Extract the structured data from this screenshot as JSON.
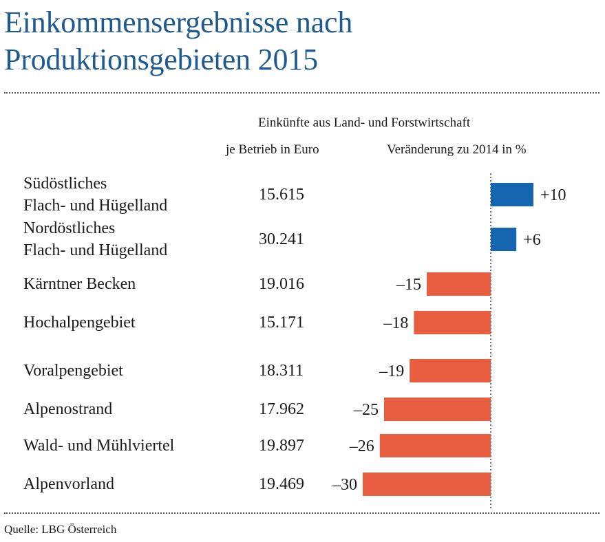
{
  "title_line1": "Einkommensergebnisse nach",
  "title_line2": "Produktionsgebieten 2015",
  "header_main": "Einkünfte aus Land- und Forstwirtschaft",
  "header_col1": "je Betrieb in Euro",
  "header_col2": "Veränderung zu 2014 in %",
  "source": "Quelle: LBG Österreich",
  "colors": {
    "positive": "#1565b0",
    "negative": "#e85c40",
    "title": "#1f5a8e"
  },
  "chart_data": {
    "type": "bar",
    "orientation": "horizontal",
    "categories": [
      [
        "Südöstliches",
        "Flach- und Hügelland"
      ],
      [
        "Nordöstliches",
        "Flach- und Hügelland"
      ],
      [
        "Kärntner Becken"
      ],
      [
        "Hochalpengebiet"
      ],
      [
        "Voralpengebiet"
      ],
      [
        "Alpenostrand"
      ],
      [
        "Wald- und Mühlviertel"
      ],
      [
        "Alpenvorland"
      ]
    ],
    "income_per_farm": [
      "15.615",
      "30.241",
      "19.016",
      "15.171",
      "18.311",
      "17.962",
      "19.897",
      "19.469"
    ],
    "values": [
      10,
      6,
      -15,
      -18,
      -19,
      -25,
      -26,
      -30
    ],
    "value_labels": [
      "+10",
      "+6",
      "–15",
      "–18",
      "–19",
      "–25",
      "–26",
      "–30"
    ]
  }
}
